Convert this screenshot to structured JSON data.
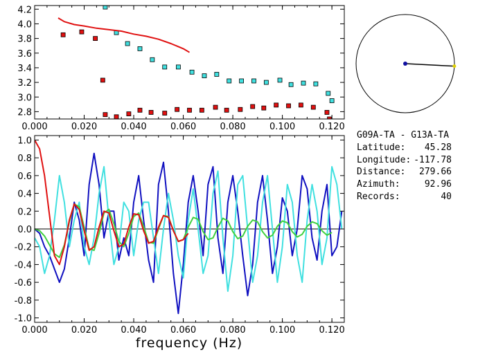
{
  "station_pair": "G09A-TA  -  G13A-TA",
  "info": {
    "latitude_label": "Latitude:",
    "latitude_value": "45.28",
    "longitude_label": "Longitude:",
    "longitude_value": "-117.78",
    "distance_label": "Distance:",
    "distance_value": "279.66",
    "azimuth_label": "Azimuth:",
    "azimuth_value": "92.96",
    "records_label": "Records:",
    "records_value": "40"
  },
  "chart_data": [
    {
      "type": "scatter",
      "xlim": [
        0.0,
        0.125
      ],
      "ylim": [
        2.7,
        4.25
      ],
      "xticks": [
        "0.000",
        "0.020",
        "0.040",
        "0.060",
        "0.080",
        "0.100",
        "0.120"
      ],
      "yticks": [
        "4.2",
        "4.0",
        "3.8",
        "3.6",
        "3.4",
        "3.2",
        "3.0",
        "2.8"
      ],
      "colors": {
        "cyan": "#40e0e0",
        "red": "#e01010"
      },
      "series": [
        {
          "color": "cyan",
          "marker": "square",
          "points": [
            [
              0.0285,
              4.23
            ],
            [
              0.033,
              3.88
            ],
            [
              0.0375,
              3.73
            ],
            [
              0.0425,
              3.66
            ],
            [
              0.0475,
              3.51
            ],
            [
              0.0525,
              3.41
            ],
            [
              0.058,
              3.41
            ],
            [
              0.0635,
              3.34
            ],
            [
              0.0685,
              3.29
            ],
            [
              0.0735,
              3.31
            ],
            [
              0.0785,
              3.22
            ],
            [
              0.0835,
              3.22
            ],
            [
              0.0885,
              3.22
            ],
            [
              0.0935,
              3.2
            ],
            [
              0.099,
              3.23
            ],
            [
              0.1035,
              3.17
            ],
            [
              0.1085,
              3.19
            ],
            [
              0.1135,
              3.18
            ],
            [
              0.1185,
              3.05
            ],
            [
              0.12,
              2.95
            ]
          ]
        },
        {
          "color": "red",
          "marker": "square",
          "points": [
            [
              0.0115,
              3.85
            ],
            [
              0.019,
              3.89
            ],
            [
              0.0245,
              3.8
            ],
            [
              0.0275,
              3.23
            ],
            [
              0.0285,
              2.76
            ],
            [
              0.033,
              2.73
            ],
            [
              0.038,
              2.77
            ],
            [
              0.0425,
              2.82
            ],
            [
              0.047,
              2.79
            ],
            [
              0.0525,
              2.78
            ],
            [
              0.0575,
              2.83
            ],
            [
              0.0625,
              2.82
            ],
            [
              0.0675,
              2.82
            ],
            [
              0.073,
              2.86
            ],
            [
              0.0775,
              2.82
            ],
            [
              0.083,
              2.83
            ],
            [
              0.088,
              2.87
            ],
            [
              0.0925,
              2.85
            ],
            [
              0.0975,
              2.89
            ],
            [
              0.1025,
              2.88
            ],
            [
              0.1075,
              2.89
            ],
            [
              0.1125,
              2.86
            ],
            [
              0.118,
              2.79
            ],
            [
              0.119,
              2.7
            ]
          ]
        },
        {
          "color": "red",
          "marker": "line",
          "points": [
            [
              0.0095,
              4.08
            ],
            [
              0.012,
              4.03
            ],
            [
              0.016,
              3.99
            ],
            [
              0.02,
              3.97
            ],
            [
              0.025,
              3.94
            ],
            [
              0.03,
              3.92
            ],
            [
              0.035,
              3.9
            ],
            [
              0.04,
              3.86
            ],
            [
              0.045,
              3.83
            ],
            [
              0.05,
              3.79
            ],
            [
              0.055,
              3.73
            ],
            [
              0.06,
              3.66
            ],
            [
              0.0625,
              3.61
            ]
          ]
        }
      ]
    },
    {
      "type": "line",
      "xlabel": "frequency (Hz)",
      "xlim": [
        0.0,
        0.125
      ],
      "ylim": [
        -1.05,
        1.05
      ],
      "xticks": [
        "0.000",
        "0.020",
        "0.040",
        "0.060",
        "0.080",
        "0.100",
        "0.120"
      ],
      "yticks": [
        "1.0",
        "0.8",
        "0.6",
        "0.4",
        "0.2",
        "0.0",
        "-0.2",
        "-0.4",
        "-0.6",
        "-0.8",
        "-1.0"
      ],
      "colors": {
        "blue": "#1010c0",
        "cyan": "#40e0e0",
        "green": "#40d040",
        "red": "#e01010"
      },
      "series": [
        {
          "color": "blue",
          "x": [
            0,
            0.002,
            0.004,
            0.006,
            0.008,
            0.01,
            0.012,
            0.014,
            0.016,
            0.018,
            0.02,
            0.022,
            0.024,
            0.026,
            0.028,
            0.03,
            0.032,
            0.034,
            0.036,
            0.038,
            0.04,
            0.042,
            0.044,
            0.046,
            0.048,
            0.05,
            0.052,
            0.054,
            0.056,
            0.058,
            0.06,
            0.062,
            0.064,
            0.066,
            0.068,
            0.07,
            0.072,
            0.074,
            0.076,
            0.078,
            0.08,
            0.082,
            0.084,
            0.086,
            0.088,
            0.09,
            0.092,
            0.094,
            0.096,
            0.098,
            0.1,
            0.102,
            0.104,
            0.106,
            0.108,
            0.11,
            0.112,
            0.114,
            0.116,
            0.118,
            0.12,
            0.122,
            0.124
          ],
          "y": [
            0.0,
            -0.05,
            -0.2,
            -0.3,
            -0.45,
            -0.6,
            -0.45,
            -0.1,
            0.3,
            0.1,
            -0.3,
            0.5,
            0.85,
            0.5,
            -0.1,
            0.2,
            0.2,
            -0.35,
            -0.1,
            -0.3,
            0.3,
            0.6,
            0.1,
            -0.35,
            -0.6,
            0.5,
            0.75,
            0.2,
            -0.5,
            -0.95,
            -0.4,
            0.3,
            0.6,
            0.2,
            -0.3,
            0.5,
            0.7,
            -0.1,
            -0.5,
            0.3,
            0.6,
            0.2,
            -0.3,
            -0.75,
            -0.4,
            0.3,
            0.6,
            0.1,
            -0.5,
            -0.2,
            0.35,
            0.2,
            -0.3,
            0.0,
            0.6,
            0.45,
            -0.1,
            -0.35,
            0.2,
            0.5,
            -0.3,
            -0.2,
            0.2
          ]
        },
        {
          "color": "cyan",
          "x": [
            0,
            0.002,
            0.004,
            0.006,
            0.008,
            0.01,
            0.012,
            0.014,
            0.016,
            0.018,
            0.02,
            0.022,
            0.024,
            0.026,
            0.028,
            0.03,
            0.032,
            0.034,
            0.036,
            0.038,
            0.04,
            0.042,
            0.044,
            0.046,
            0.048,
            0.05,
            0.052,
            0.054,
            0.056,
            0.058,
            0.06,
            0.062,
            0.064,
            0.066,
            0.068,
            0.07,
            0.072,
            0.074,
            0.076,
            0.078,
            0.08,
            0.082,
            0.084,
            0.086,
            0.088,
            0.09,
            0.092,
            0.094,
            0.096,
            0.098,
            0.1,
            0.102,
            0.104,
            0.106,
            0.108,
            0.11,
            0.112,
            0.114,
            0.116,
            0.118,
            0.12,
            0.122,
            0.124
          ],
          "y": [
            -0.1,
            -0.2,
            -0.5,
            -0.3,
            0.1,
            0.6,
            0.3,
            -0.2,
            0.1,
            0.3,
            -0.2,
            -0.4,
            -0.1,
            0.4,
            0.7,
            0.1,
            -0.4,
            -0.2,
            0.3,
            0.2,
            -0.3,
            0.1,
            0.3,
            0.3,
            -0.1,
            -0.5,
            0.0,
            0.4,
            0.1,
            -0.3,
            -0.55,
            0.1,
            0.45,
            0.0,
            -0.5,
            -0.3,
            0.4,
            0.65,
            -0.1,
            -0.7,
            -0.3,
            0.5,
            0.6,
            0.0,
            -0.6,
            -0.3,
            0.3,
            0.6,
            0.0,
            -0.6,
            -0.2,
            0.5,
            0.3,
            -0.3,
            -0.6,
            0.1,
            0.5,
            0.2,
            -0.4,
            -0.1,
            0.7,
            0.5,
            0.0
          ]
        },
        {
          "color": "green",
          "x": [
            0.0,
            0.002,
            0.004,
            0.006,
            0.008,
            0.01,
            0.012,
            0.014,
            0.016,
            0.018,
            0.02,
            0.022,
            0.024,
            0.026,
            0.028,
            0.03,
            0.032,
            0.034,
            0.036,
            0.038,
            0.04,
            0.042,
            0.044,
            0.046,
            0.048,
            0.05,
            0.052,
            0.054,
            0.056,
            0.058,
            0.06,
            0.062,
            0.064,
            0.066,
            0.068,
            0.07,
            0.072,
            0.074,
            0.076,
            0.078,
            0.08,
            0.082,
            0.084,
            0.086,
            0.088,
            0.09,
            0.092,
            0.094,
            0.096,
            0.098,
            0.1,
            0.102,
            0.104,
            0.106,
            0.108,
            0.11,
            0.112,
            0.114,
            0.116,
            0.118,
            0.12
          ],
          "y": [
            0.0,
            -0.02,
            -0.08,
            -0.18,
            -0.28,
            -0.32,
            -0.18,
            0.08,
            0.28,
            0.25,
            0.02,
            -0.22,
            -0.24,
            -0.05,
            0.18,
            0.22,
            0.06,
            -0.14,
            -0.2,
            -0.05,
            0.14,
            0.18,
            0.03,
            -0.15,
            -0.16,
            0.0,
            0.15,
            0.14,
            -0.02,
            -0.14,
            -0.12,
            0.02,
            0.13,
            0.11,
            -0.03,
            -0.12,
            -0.1,
            0.02,
            0.12,
            0.09,
            -0.03,
            -0.11,
            -0.08,
            0.03,
            0.1,
            0.08,
            -0.03,
            -0.1,
            -0.07,
            0.03,
            0.09,
            0.07,
            -0.03,
            -0.09,
            -0.06,
            0.03,
            0.08,
            0.06,
            -0.02,
            -0.07,
            -0.04
          ]
        },
        {
          "color": "red",
          "x": [
            0.0,
            0.002,
            0.004,
            0.006,
            0.008,
            0.01,
            0.012,
            0.014,
            0.016,
            0.018,
            0.02,
            0.022,
            0.024,
            0.026,
            0.028,
            0.03,
            0.032,
            0.034,
            0.036,
            0.038,
            0.04,
            0.042,
            0.044,
            0.046,
            0.048,
            0.05,
            0.052,
            0.054,
            0.056,
            0.058,
            0.06,
            0.062
          ],
          "y": [
            1.0,
            0.9,
            0.6,
            0.15,
            -0.3,
            -0.4,
            -0.2,
            0.1,
            0.28,
            0.22,
            -0.02,
            -0.24,
            -0.2,
            0.02,
            0.2,
            0.18,
            -0.02,
            -0.2,
            -0.17,
            0.02,
            0.17,
            0.16,
            -0.02,
            -0.16,
            -0.14,
            0.02,
            0.15,
            0.13,
            -0.02,
            -0.14,
            -0.12,
            -0.05
          ]
        }
      ]
    }
  ],
  "azimuth_inset": {
    "azimuth_deg": 92.96,
    "colors": {
      "line": "#000000",
      "origin": "#1010a0",
      "endpoint": "#e0d000"
    }
  }
}
